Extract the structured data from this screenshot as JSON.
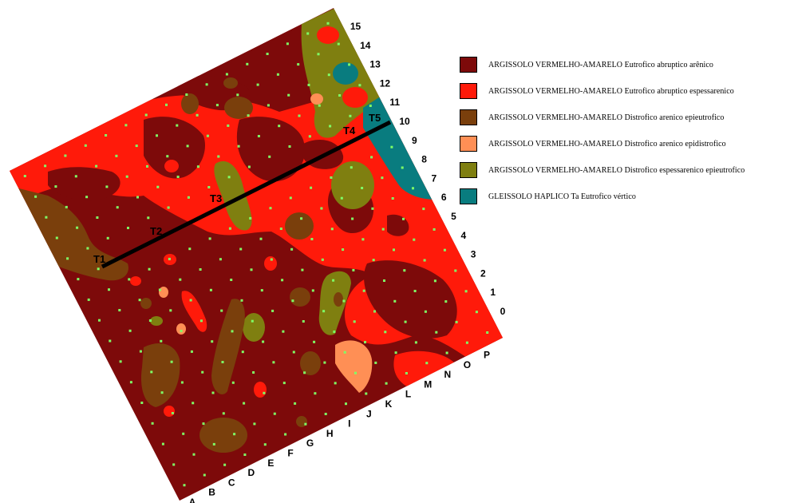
{
  "colors": {
    "argissolo_eutrofico_abruptico_arenico": "#7d0a0a",
    "argissolo_eutrofico_abruptico_espessarenico": "#ff1a0a",
    "argissolo_distrofico_arenico_epieutrofico": "#7a3f0c",
    "argissolo_distrofico_arenico_epidistrofico": "#ff8f55",
    "argissolo_distrofico_espessarenico_epieutrofico": "#7f7f10",
    "gleissolo_haplico": "#097c7f",
    "sample_point": "#7fff66",
    "transect_line": "#000000"
  },
  "legend": [
    {
      "label": "ARGISSOLO VERMELHO-AMARELO Eutrofico abruptico  arênico",
      "color": "#7d0a0a"
    },
    {
      "label": "ARGISSOLO VERMELHO-AMARELO Eutrofico abruptico  espessarenico",
      "color": "#ff1a0a"
    },
    {
      "label": "ARGISSOLO VERMELHO-AMARELO Distrofico arenico epieutrofico",
      "color": "#7a3f0c"
    },
    {
      "label": "ARGISSOLO VERMELHO-AMARELO Distrofico arenico epidistrofico",
      "color": "#ff8f55"
    },
    {
      "label": "ARGISSOLO VERMELHO-AMARELO Distrofico espessarenico epieutrofico",
      "color": "#7f7f10"
    },
    {
      "label": "GLEISSOLO HAPLICO Ta Eutrofico vértico",
      "color": "#097c7f"
    }
  ],
  "grid": {
    "row_labels": [
      "0",
      "1",
      "2",
      "3",
      "4",
      "5",
      "6",
      "7",
      "8",
      "9",
      "10",
      "11",
      "12",
      "13",
      "14",
      "15"
    ],
    "column_labels": [
      "A",
      "B",
      "C",
      "D",
      "E",
      "F",
      "G",
      "H",
      "I",
      "J",
      "K",
      "L",
      "M",
      "N",
      "O",
      "P"
    ]
  },
  "transects": [
    "T1",
    "T2",
    "T3",
    "T4",
    "T5"
  ]
}
